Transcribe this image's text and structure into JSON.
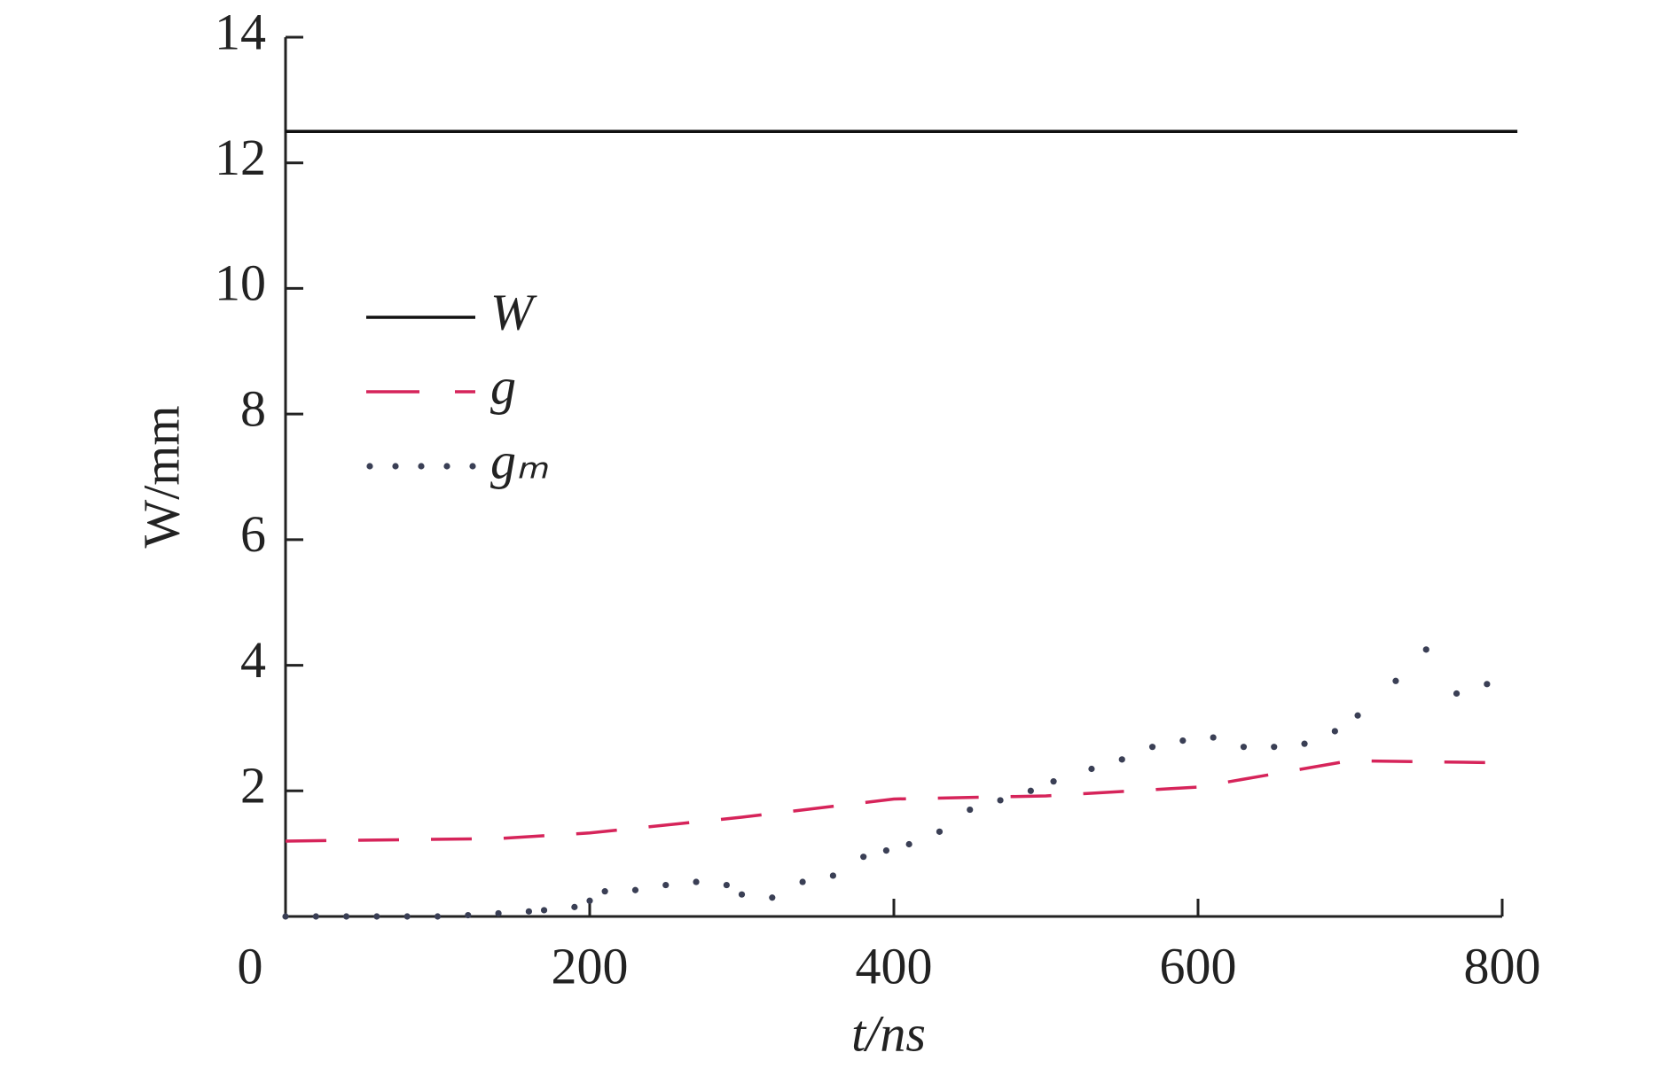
{
  "chart_data": {
    "type": "line",
    "xlabel": "t/ns",
    "ylabel": "W/mm",
    "xlim": [
      0,
      800
    ],
    "ylim": [
      0,
      14
    ],
    "xticks": [
      0,
      200,
      400,
      600,
      800
    ],
    "yticks": [
      2,
      4,
      6,
      8,
      10,
      12,
      14
    ],
    "legend": "upper left",
    "series": [
      {
        "name": "W",
        "color": "#111111",
        "style": "solid",
        "x": [
          0,
          810
        ],
        "values": [
          12.5,
          12.5
        ]
      },
      {
        "name": "g",
        "color": "#d6245a",
        "style": "dashed",
        "x": [
          0,
          140,
          200,
          300,
          400,
          500,
          600,
          700,
          792
        ],
        "values": [
          1.2,
          1.24,
          1.33,
          1.58,
          1.87,
          1.92,
          2.06,
          2.48,
          2.45
        ]
      },
      {
        "name": "gₘ",
        "color": "#3a3f55",
        "style": "dotted",
        "x": [
          0,
          20,
          40,
          60,
          80,
          100,
          120,
          140,
          160,
          170,
          190,
          200,
          210,
          230,
          250,
          270,
          290,
          300,
          320,
          340,
          360,
          380,
          395,
          410,
          430,
          450,
          470,
          490,
          505,
          530,
          550,
          570,
          590,
          610,
          630,
          650,
          670,
          690,
          705,
          730,
          750,
          770,
          790
        ],
        "values": [
          0,
          0,
          0,
          0,
          0,
          0,
          0.02,
          0.05,
          0.08,
          0.1,
          0.15,
          0.25,
          0.4,
          0.42,
          0.5,
          0.55,
          0.5,
          0.35,
          0.3,
          0.55,
          0.65,
          0.95,
          1.05,
          1.15,
          1.35,
          1.7,
          1.85,
          2.0,
          2.15,
          2.35,
          2.5,
          2.7,
          2.8,
          2.85,
          2.7,
          2.7,
          2.75,
          2.95,
          3.2,
          3.75,
          4.25,
          3.55,
          3.7
        ]
      }
    ]
  }
}
